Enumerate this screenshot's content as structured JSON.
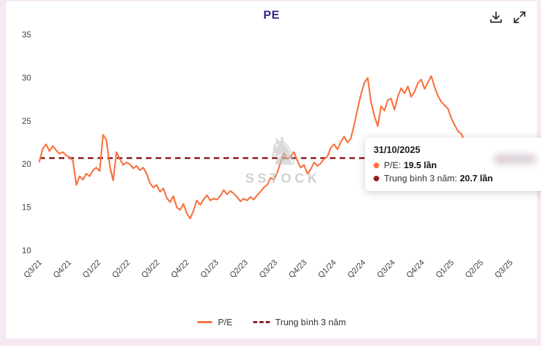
{
  "header": {
    "title": "PE"
  },
  "toolbar": {
    "icons": {
      "download_icon": "tray-arrow-down",
      "expand_icon": "arrows-diagonal-expand"
    }
  },
  "watermark": {
    "text": "SSTOCK",
    "logo": "chess-knight"
  },
  "tooltip": {
    "date": "31/10/2025",
    "rows": [
      {
        "label": "P/E:",
        "value": "19.5 lần",
        "color": "#f8703c"
      },
      {
        "label": "Trung bình 3 năm:",
        "value": "20.7 lần",
        "color": "#8e1e1e"
      }
    ]
  },
  "legend": {
    "items": [
      {
        "label": "P/E",
        "marker": "solid-line",
        "color": "#f8703c"
      },
      {
        "label": "Trung bình 3 năm",
        "marker": "dashed-line",
        "color": "#8e1e1e"
      }
    ]
  },
  "colors": {
    "series_orange": "#f8703c",
    "average_red": "#8e1e1e",
    "title_purple": "#312783",
    "frame_pink": "#f7e9f3"
  },
  "chart_data": {
    "type": "line",
    "title": "PE",
    "xlabel": "",
    "ylabel": "",
    "ylim": [
      10,
      35
    ],
    "y_ticks": [
      35,
      30,
      25,
      20,
      15,
      10
    ],
    "grid": false,
    "legend_position": "bottom",
    "x_tick_labels": [
      "Q3/21",
      "Q4/21",
      "Q1/22",
      "Q2/22",
      "Q3/22",
      "Q4/22",
      "Q1/23",
      "Q2/23",
      "Q3/23",
      "Q4/23",
      "Q1/24",
      "Q2/24",
      "Q3/24",
      "Q4/24",
      "Q1/25",
      "Q2/25",
      "Q3/25"
    ],
    "series": [
      {
        "name": "P/E",
        "color": "#f8703c",
        "values": [
          20.3,
          21.8,
          22.3,
          21.5,
          22.1,
          21.6,
          21.2,
          21.4,
          21.0,
          20.8,
          20.4,
          17.6,
          18.6,
          18.2,
          18.9,
          18.6,
          19.3,
          19.6,
          19.2,
          23.4,
          22.8,
          19.8,
          18.1,
          21.4,
          20.6,
          19.9,
          20.2,
          20.0,
          19.5,
          19.8,
          19.3,
          19.6,
          18.9,
          17.8,
          17.3,
          17.6,
          16.8,
          17.2,
          16.1,
          15.6,
          16.3,
          15.0,
          14.7,
          15.4,
          14.3,
          13.7,
          14.6,
          15.8,
          15.3,
          15.9,
          16.4,
          15.8,
          16.0,
          15.9,
          16.3,
          17.0,
          16.5,
          16.9,
          16.6,
          16.2,
          15.7,
          16.0,
          15.8,
          16.2,
          15.9,
          16.4,
          16.8,
          17.3,
          17.6,
          18.4,
          18.2,
          19.0,
          20.2,
          21.3,
          20.6,
          20.9,
          21.4,
          20.4,
          19.6,
          19.9,
          18.9,
          19.4,
          20.2,
          19.8,
          20.1,
          20.6,
          20.9,
          21.9,
          22.3,
          21.7,
          22.6,
          23.2,
          22.5,
          23.0,
          24.6,
          26.4,
          28.1,
          29.4,
          30.0,
          27.2,
          25.6,
          24.4,
          26.7,
          26.2,
          27.4,
          27.6,
          26.3,
          27.8,
          28.8,
          28.2,
          29.0,
          27.8,
          28.4,
          29.4,
          29.8,
          28.7,
          29.5,
          30.2,
          28.9,
          27.9,
          27.2,
          26.8,
          26.4,
          25.3,
          24.5,
          23.8,
          23.5,
          22.6,
          21.8,
          21.2,
          20.8,
          21.3,
          20.6,
          20.1,
          20.5,
          19.8,
          20.2,
          19.6,
          19.9,
          19.4,
          18.6,
          17.9,
          18.4,
          19.1,
          18.7,
          19.5
        ]
      },
      {
        "name": "Trung bình 3 năm",
        "color": "#8e1e1e",
        "style": "dashed",
        "value": 20.7
      }
    ],
    "end_markers": [
      {
        "shape": "diamond",
        "color": "#8e1e1e",
        "value": 20.7
      },
      {
        "shape": "circle",
        "color": "#f8703c",
        "value": 19.5
      }
    ]
  }
}
